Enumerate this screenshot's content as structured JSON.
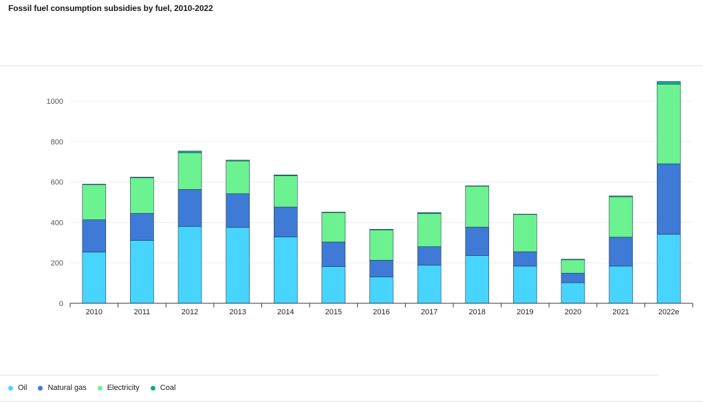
{
  "title": "Fossil fuel consumption subsidies by fuel, 2010-2022",
  "legend": [
    {
      "name": "Oil",
      "color": "#47d4ff"
    },
    {
      "name": "Natural gas",
      "color": "#3e7ad6"
    },
    {
      "name": "Electricity",
      "color": "#6cf291"
    },
    {
      "name": "Coal",
      "color": "#0fab92"
    }
  ],
  "chart_data": {
    "type": "bar",
    "stacked": true,
    "title": "Fossil fuel consumption subsidies by fuel, 2010-2022",
    "xlabel": "",
    "ylabel": "",
    "ylim": [
      0,
      1100
    ],
    "yticks": [
      0,
      200,
      400,
      600,
      800,
      1000
    ],
    "grid": true,
    "legend_position": "bottom-left",
    "categories": [
      "2010",
      "2011",
      "2012",
      "2013",
      "2014",
      "2015",
      "2016",
      "2017",
      "2018",
      "2019",
      "2020",
      "2021",
      "2022e"
    ],
    "series": [
      {
        "name": "Oil",
        "color": "#47d4ff",
        "values": [
          253,
          311,
          380,
          375,
          328,
          182,
          130,
          188,
          236,
          184,
          102,
          184,
          341
        ]
      },
      {
        "name": "Natural gas",
        "color": "#3e7ad6",
        "values": [
          160,
          134,
          183,
          167,
          148,
          121,
          83,
          92,
          141,
          71,
          47,
          143,
          349
        ]
      },
      {
        "name": "Electricity",
        "color": "#6cf291",
        "values": [
          173,
          176,
          182,
          162,
          155,
          146,
          150,
          164,
          202,
          185,
          66,
          200,
          394
        ]
      },
      {
        "name": "Coal",
        "color": "#0fab92",
        "values": [
          3,
          3,
          8,
          4,
          4,
          2,
          3,
          5,
          2,
          1,
          3,
          4,
          13
        ]
      }
    ]
  }
}
